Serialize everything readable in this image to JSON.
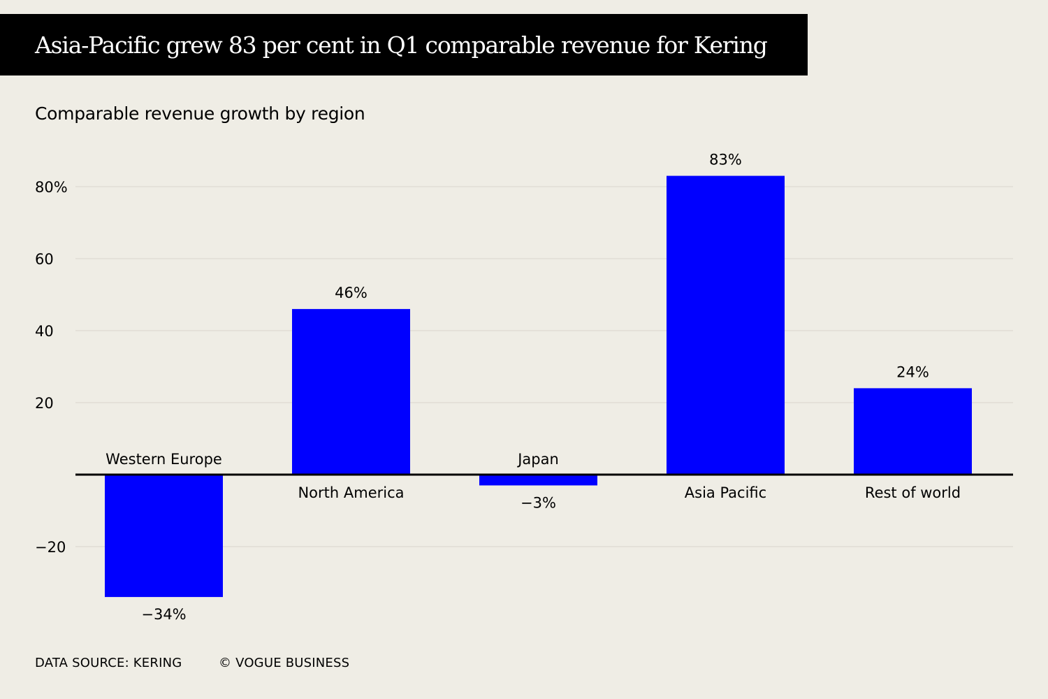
{
  "title": "Asia-Pacific grew 83 per cent in Q1 comparable revenue for Kering",
  "subtitle": "Comparable revenue growth by region",
  "footer": {
    "source": "DATA SOURCE: KERING",
    "credit": "© VOGUE BUSINESS"
  },
  "colors": {
    "background": "#efede5",
    "bar": "#0000ff",
    "title_bar": "#000000",
    "grid": "#e0ddd5"
  },
  "chart_data": {
    "type": "bar",
    "categories": [
      "Western Europe",
      "North America",
      "Japan",
      "Asia Pacific",
      "Rest of world"
    ],
    "values": [
      -34,
      46,
      -3,
      83,
      24
    ],
    "value_labels": [
      "−34%",
      "46%",
      "−3%",
      "83%",
      "24%"
    ],
    "yticks": [
      {
        "value": 80,
        "label": "80%"
      },
      {
        "value": 60,
        "label": "60"
      },
      {
        "value": 40,
        "label": "40"
      },
      {
        "value": 20,
        "label": "20"
      },
      {
        "value": -20,
        "label": "−20"
      }
    ],
    "ylim": [
      -40,
      90
    ],
    "grid": true,
    "xlabel": "",
    "ylabel": ""
  }
}
